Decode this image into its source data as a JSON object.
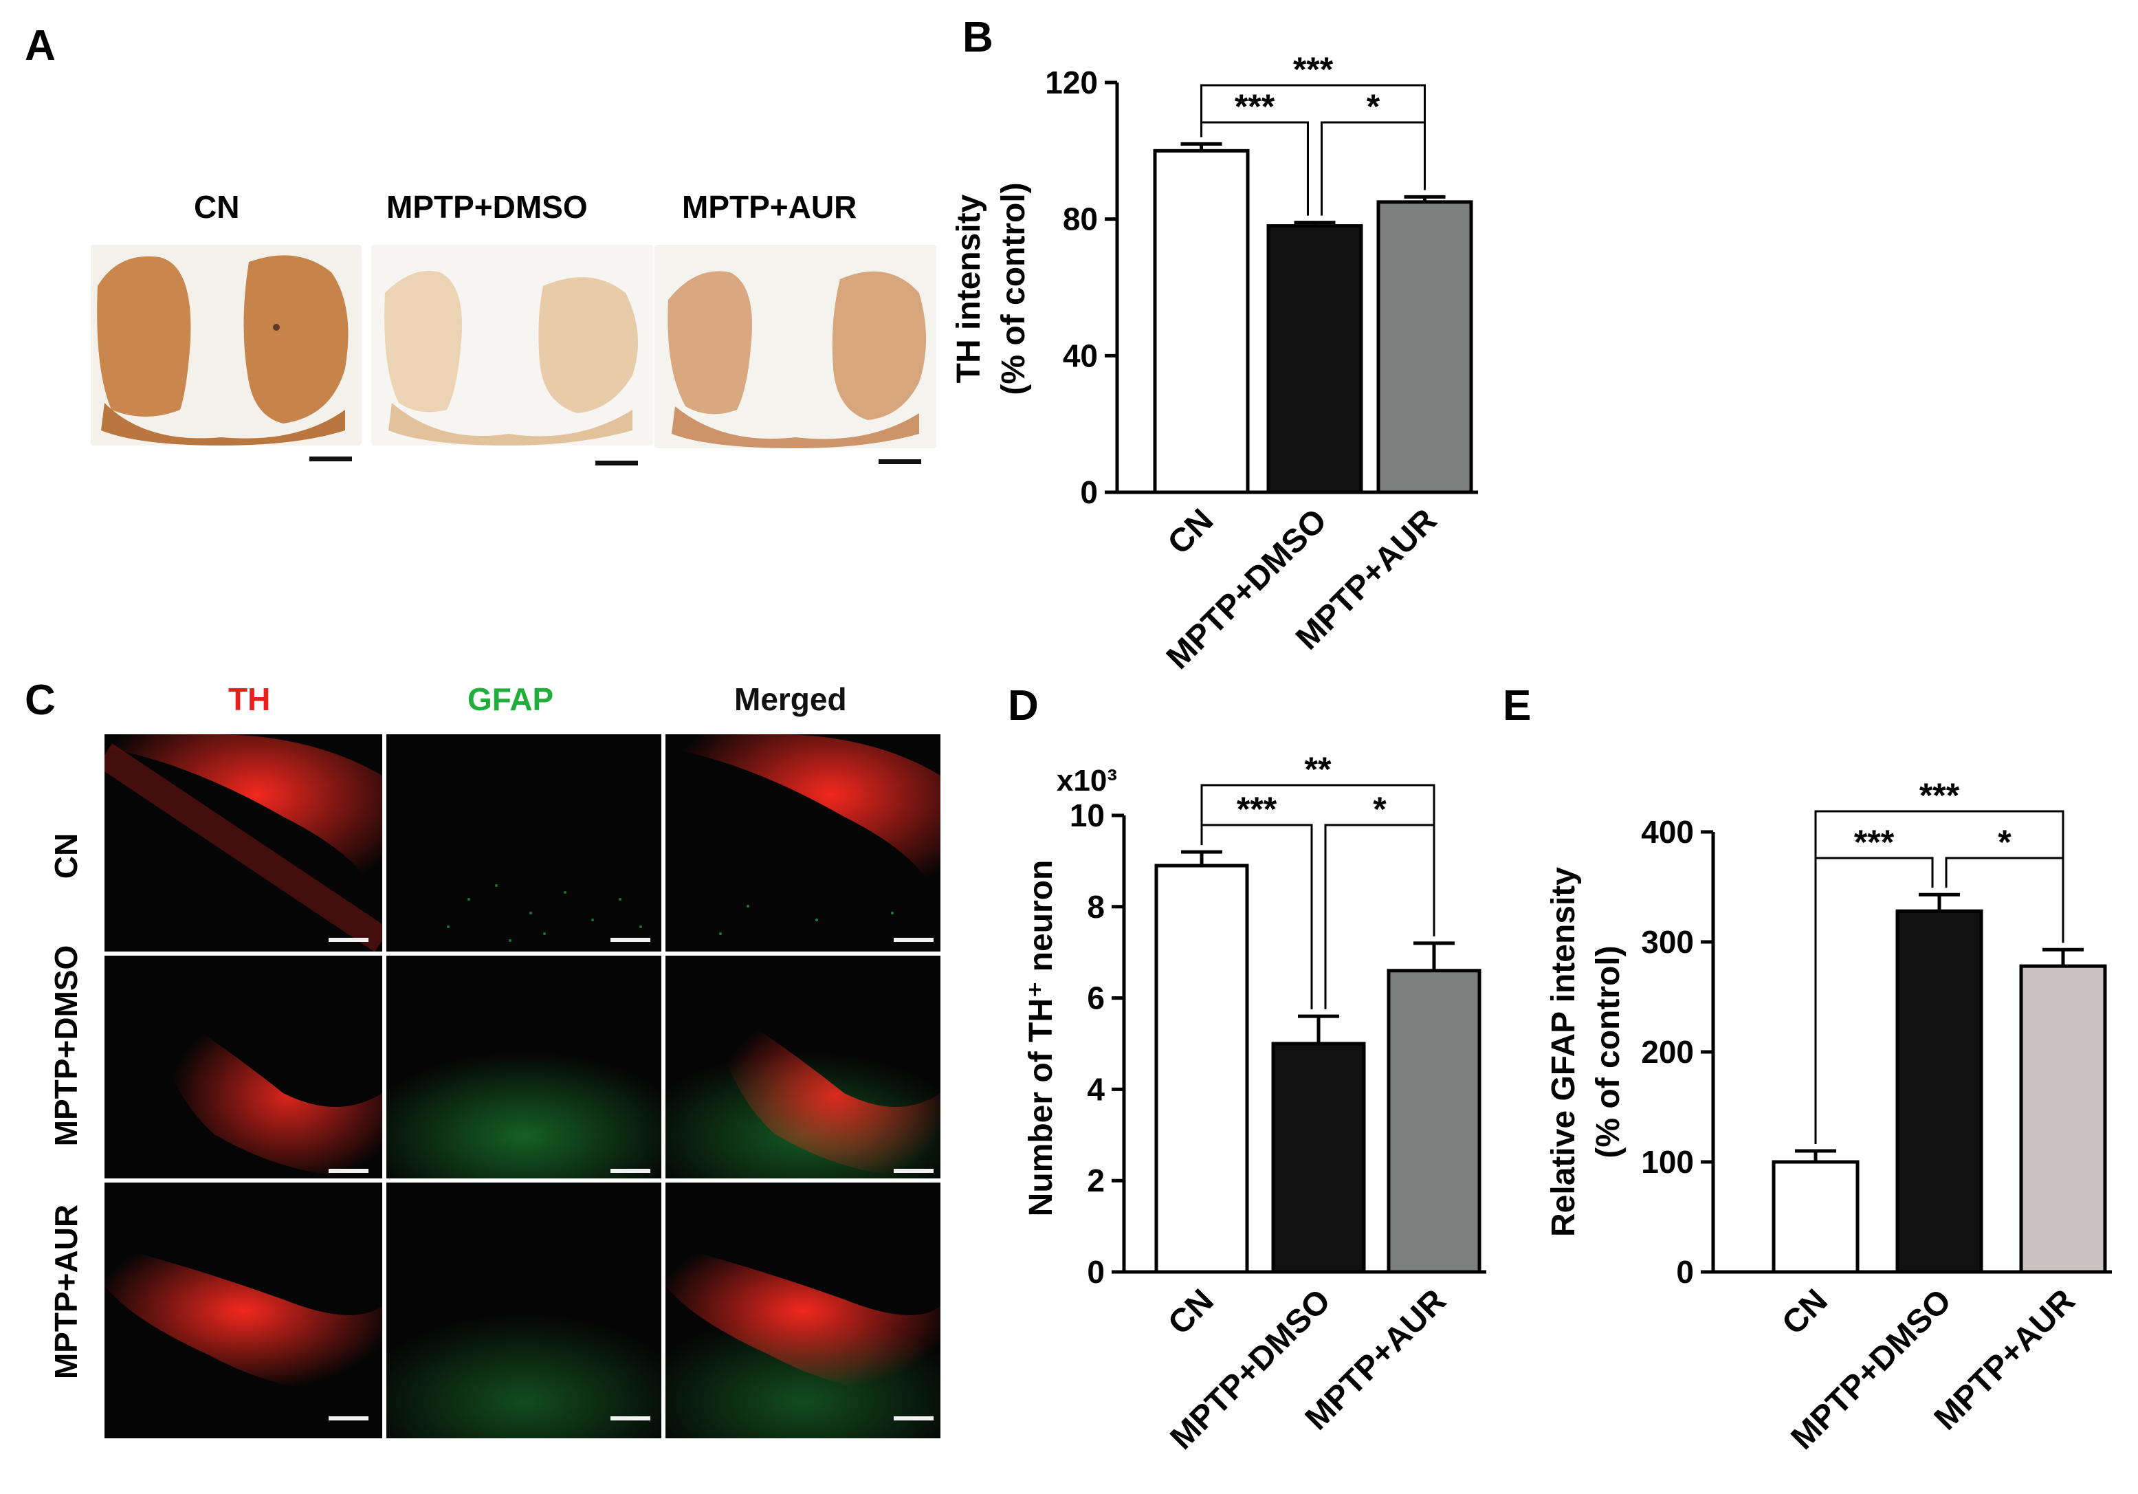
{
  "panel_letters": {
    "A": "A",
    "B": "B",
    "C": "C",
    "D": "D",
    "E": "E"
  },
  "panel_a": {
    "column_labels": [
      "CN",
      "MPTP+DMSO",
      "MPTP+AUR"
    ]
  },
  "panel_c": {
    "column_labels": [
      "TH",
      "GFAP",
      "Merged"
    ],
    "row_labels": [
      "CN",
      "MPTP+DMSO",
      "MPTP+AUR"
    ],
    "colors": {
      "TH": "#e8201c",
      "GFAP": "#1fae3b",
      "Merged": "#111111"
    }
  },
  "chart_data": [
    {
      "id": "B",
      "type": "bar",
      "categories": [
        "CN",
        "MPTP+DMSO",
        "MPTP+AUR"
      ],
      "values": [
        100,
        78,
        85
      ],
      "errors": [
        2,
        1,
        1.5
      ],
      "colors": [
        "#ffffff",
        "#111111",
        "#7c7f7d"
      ],
      "ylabel_lines": [
        "TH intensity",
        "(% of control)"
      ],
      "yticks": [
        0,
        40,
        80,
        120
      ],
      "ylim": [
        0,
        120
      ],
      "multiplier": "",
      "significance": [
        {
          "from": 0,
          "to": 1,
          "label": "***"
        },
        {
          "from": 1,
          "to": 2,
          "label": "*"
        },
        {
          "from": 0,
          "to": 2,
          "label": "***"
        }
      ]
    },
    {
      "id": "D",
      "type": "bar",
      "categories": [
        "CN",
        "MPTP+DMSO",
        "MPTP+AUR"
      ],
      "values": [
        8.9,
        5.0,
        6.6
      ],
      "errors": [
        0.3,
        0.6,
        0.6
      ],
      "colors": [
        "#ffffff",
        "#111111",
        "#7c7f7d"
      ],
      "ylabel_lines": [
        "Number of TH⁺ neuron"
      ],
      "yticks": [
        0,
        2,
        4,
        6,
        8,
        10
      ],
      "ylim": [
        0,
        10
      ],
      "multiplier": "x10³",
      "significance": [
        {
          "from": 0,
          "to": 1,
          "label": "***"
        },
        {
          "from": 1,
          "to": 2,
          "label": "*"
        },
        {
          "from": 0,
          "to": 2,
          "label": "**"
        }
      ]
    },
    {
      "id": "E",
      "type": "bar",
      "categories": [
        "CN",
        "MPTP+DMSO",
        "MPTP+AUR"
      ],
      "values": [
        100,
        328,
        278
      ],
      "errors": [
        10,
        15,
        15
      ],
      "colors": [
        "#ffffff",
        "#111111",
        "#cbc1c0"
      ],
      "ylabel_lines": [
        "Relative GFAP intensity",
        "(% of control)"
      ],
      "yticks": [
        0,
        100,
        200,
        300,
        400
      ],
      "ylim": [
        0,
        400
      ],
      "multiplier": "",
      "significance": [
        {
          "from": 0,
          "to": 1,
          "label": "***"
        },
        {
          "from": 1,
          "to": 2,
          "label": "*"
        },
        {
          "from": 0,
          "to": 2,
          "label": "***"
        }
      ]
    }
  ]
}
